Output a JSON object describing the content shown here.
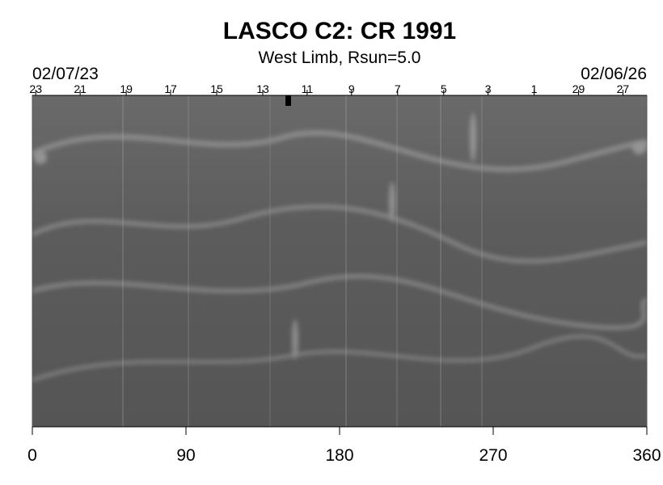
{
  "chart_data": {
    "type": "synoptic-map",
    "title": "LASCO C2: CR 1991",
    "subtitle": "West Limb, Rsun=5.0",
    "start_date": "02/07/23",
    "end_date": "02/06/26",
    "xlim": [
      0,
      360
    ],
    "xticks": [
      0,
      90,
      180,
      270,
      360
    ],
    "top_ticks": [
      {
        "value": 2,
        "label": "23"
      },
      {
        "value": 28,
        "label": "21"
      },
      {
        "value": 55,
        "label": "19"
      },
      {
        "value": 81,
        "label": "17"
      },
      {
        "value": 108,
        "label": "15"
      },
      {
        "value": 135,
        "label": "13"
      },
      {
        "value": 161,
        "label": "11"
      },
      {
        "value": 187,
        "label": "9"
      },
      {
        "value": 214,
        "label": "7"
      },
      {
        "value": 241,
        "label": "5"
      },
      {
        "value": 267,
        "label": "3"
      },
      {
        "value": 294,
        "label": "1"
      },
      {
        "value": 320,
        "label": "29"
      },
      {
        "value": 346,
        "label": "27"
      }
    ],
    "color": "#5a5a5a"
  }
}
